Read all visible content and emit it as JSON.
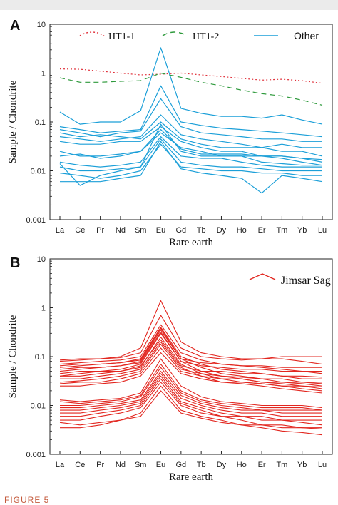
{
  "figure_caption": "FIGURE 5",
  "chart_data": [
    {
      "panel_label": "A",
      "type": "line",
      "xlabel": "Rare earth",
      "ylabel": "Sample / Chondrite",
      "categories": [
        "La",
        "Ce",
        "Pr",
        "Nd",
        "Sm",
        "Eu",
        "Gd",
        "Tb",
        "Dy",
        "Ho",
        "Er",
        "Tm",
        "Yb",
        "Lu"
      ],
      "y_scale": "log",
      "ylim": [
        0.001,
        10
      ],
      "y_ticks": [
        "0.001",
        "0.01",
        "0.1",
        "1",
        "10"
      ],
      "grid": false,
      "legend_position": "top",
      "legend": [
        {
          "name": "HT1-1",
          "color": "#e0303a",
          "dash": "dotted"
        },
        {
          "name": "HT1-2",
          "color": "#2e9a3c",
          "dash": "dashed"
        },
        {
          "name": "Other",
          "color": "#1b9fd8",
          "dash": "solid"
        }
      ],
      "series": [
        {
          "name": "HT1-1",
          "color": "#e0303a",
          "dash": "dotted",
          "values": [
            1.22,
            1.2,
            1.1,
            1.0,
            0.92,
            0.95,
            1.0,
            0.92,
            0.85,
            0.78,
            0.72,
            0.75,
            0.7,
            0.62
          ]
        },
        {
          "name": "HT1-2",
          "color": "#2e9a3c",
          "dash": "dashed",
          "values": [
            0.8,
            0.65,
            0.65,
            0.68,
            0.7,
            1.0,
            0.82,
            0.65,
            0.55,
            0.45,
            0.38,
            0.34,
            0.28,
            0.22
          ]
        },
        {
          "name": "Other",
          "color": "#1b9fd8",
          "dash": "solid",
          "values": [
            0.16,
            0.09,
            0.1,
            0.1,
            0.17,
            3.3,
            0.19,
            0.15,
            0.13,
            0.13,
            0.12,
            0.14,
            0.11,
            0.09
          ]
        },
        {
          "name": "Other",
          "color": "#1b9fd8",
          "dash": "solid",
          "values": [
            0.08,
            0.07,
            0.06,
            0.065,
            0.07,
            0.55,
            0.1,
            0.085,
            0.075,
            0.07,
            0.065,
            0.06,
            0.055,
            0.05
          ]
        },
        {
          "name": "Other",
          "color": "#1b9fd8",
          "dash": "solid",
          "values": [
            0.07,
            0.06,
            0.05,
            0.06,
            0.065,
            0.3,
            0.08,
            0.06,
            0.055,
            0.05,
            0.045,
            0.045,
            0.04,
            0.04
          ]
        },
        {
          "name": "Other",
          "color": "#1b9fd8",
          "dash": "solid",
          "values": [
            0.05,
            0.045,
            0.04,
            0.045,
            0.05,
            0.14,
            0.055,
            0.045,
            0.04,
            0.035,
            0.03,
            0.035,
            0.03,
            0.03
          ]
        },
        {
          "name": "Other",
          "color": "#1b9fd8",
          "dash": "solid",
          "values": [
            0.06,
            0.05,
            0.055,
            0.05,
            0.045,
            0.1,
            0.045,
            0.035,
            0.03,
            0.03,
            0.03,
            0.025,
            0.025,
            0.02
          ]
        },
        {
          "name": "Other",
          "color": "#1b9fd8",
          "dash": "solid",
          "values": [
            0.04,
            0.035,
            0.035,
            0.04,
            0.04,
            0.08,
            0.04,
            0.03,
            0.025,
            0.025,
            0.02,
            0.02,
            0.018,
            0.015
          ]
        },
        {
          "name": "Other",
          "color": "#1b9fd8",
          "dash": "solid",
          "values": [
            0.02,
            0.022,
            0.018,
            0.02,
            0.025,
            0.06,
            0.03,
            0.025,
            0.02,
            0.02,
            0.02,
            0.018,
            0.015,
            0.013
          ]
        },
        {
          "name": "Other",
          "color": "#1b9fd8",
          "dash": "solid",
          "values": [
            0.015,
            0.013,
            0.012,
            0.013,
            0.015,
            0.05,
            0.02,
            0.018,
            0.018,
            0.015,
            0.013,
            0.012,
            0.012,
            0.012
          ]
        },
        {
          "name": "Other",
          "color": "#1b9fd8",
          "dash": "solid",
          "values": [
            0.012,
            0.01,
            0.01,
            0.011,
            0.012,
            0.045,
            0.015,
            0.013,
            0.012,
            0.012,
            0.011,
            0.01,
            0.01,
            0.01
          ]
        },
        {
          "name": "Other",
          "color": "#1b9fd8",
          "dash": "solid",
          "values": [
            0.009,
            0.008,
            0.007,
            0.008,
            0.01,
            0.035,
            0.012,
            0.011,
            0.01,
            0.01,
            0.009,
            0.009,
            0.008,
            0.008
          ]
        },
        {
          "name": "Other",
          "color": "#1b9fd8",
          "dash": "solid",
          "values": [
            0.006,
            0.006,
            0.006,
            0.007,
            0.008,
            0.04,
            0.011,
            0.009,
            0.008,
            0.007,
            0.0035,
            0.008,
            0.007,
            0.006
          ]
        },
        {
          "name": "Other",
          "color": "#1b9fd8",
          "dash": "solid",
          "values": [
            0.014,
            0.005,
            0.008,
            0.01,
            0.012,
            0.09,
            0.025,
            0.02,
            0.02,
            0.02,
            0.015,
            0.014,
            0.013,
            0.013
          ]
        },
        {
          "name": "Other",
          "color": "#1b9fd8",
          "dash": "solid",
          "values": [
            0.025,
            0.02,
            0.02,
            0.022,
            0.025,
            0.07,
            0.028,
            0.022,
            0.022,
            0.022,
            0.02,
            0.02,
            0.018,
            0.017
          ]
        }
      ]
    },
    {
      "panel_label": "B",
      "type": "line",
      "xlabel": "Rare earth",
      "ylabel": "Sample / Chondrite",
      "categories": [
        "La",
        "Ce",
        "Pr",
        "Nd",
        "Sm",
        "Eu",
        "Gd",
        "Tb",
        "Dy",
        "Ho",
        "Er",
        "Tm",
        "Yb",
        "Lu"
      ],
      "y_scale": "log",
      "ylim": [
        0.001,
        10
      ],
      "y_ticks": [
        "0.001",
        "0.01",
        "0.1",
        "1",
        "10"
      ],
      "grid": false,
      "legend_position": "top-right",
      "legend": [
        {
          "name": "Jimsar Sag",
          "color": "#e2261f",
          "dash": "solid"
        }
      ],
      "series": [
        {
          "name": "Jimsar Sag",
          "color": "#e2261f",
          "dash": "solid",
          "values": [
            0.08,
            0.085,
            0.09,
            0.1,
            0.15,
            1.4,
            0.2,
            0.12,
            0.1,
            0.09,
            0.09,
            0.09,
            0.08,
            0.07
          ]
        },
        {
          "name": "Jimsar Sag",
          "color": "#e2261f",
          "dash": "solid",
          "values": [
            0.085,
            0.09,
            0.09,
            0.095,
            0.12,
            0.7,
            0.15,
            0.1,
            0.09,
            0.085,
            0.09,
            0.1,
            0.1,
            0.1
          ]
        },
        {
          "name": "Jimsar Sag",
          "color": "#e2261f",
          "dash": "solid",
          "values": [
            0.07,
            0.075,
            0.08,
            0.085,
            0.1,
            0.45,
            0.12,
            0.085,
            0.07,
            0.065,
            0.06,
            0.055,
            0.05,
            0.045
          ]
        },
        {
          "name": "Jimsar Sag",
          "color": "#e2261f",
          "dash": "solid",
          "values": [
            0.06,
            0.065,
            0.07,
            0.075,
            0.09,
            0.4,
            0.1,
            0.07,
            0.055,
            0.05,
            0.045,
            0.04,
            0.035,
            0.035
          ]
        },
        {
          "name": "Jimsar Sag",
          "color": "#e2261f",
          "dash": "solid",
          "values": [
            0.05,
            0.055,
            0.06,
            0.065,
            0.08,
            0.35,
            0.09,
            0.06,
            0.045,
            0.04,
            0.035,
            0.03,
            0.028,
            0.025
          ]
        },
        {
          "name": "Jimsar Sag",
          "color": "#e2261f",
          "dash": "solid",
          "values": [
            0.045,
            0.05,
            0.05,
            0.055,
            0.07,
            0.3,
            0.08,
            0.05,
            0.04,
            0.035,
            0.03,
            0.028,
            0.025,
            0.022
          ]
        },
        {
          "name": "Jimsar Sag",
          "color": "#e2261f",
          "dash": "solid",
          "values": [
            0.04,
            0.04,
            0.045,
            0.05,
            0.06,
            0.25,
            0.07,
            0.045,
            0.035,
            0.03,
            0.028,
            0.025,
            0.022,
            0.02
          ]
        },
        {
          "name": "Jimsar Sag",
          "color": "#e2261f",
          "dash": "solid",
          "values": [
            0.035,
            0.035,
            0.04,
            0.045,
            0.055,
            0.2,
            0.06,
            0.04,
            0.03,
            0.028,
            0.025,
            0.022,
            0.02,
            0.018
          ]
        },
        {
          "name": "Jimsar Sag",
          "color": "#e2261f",
          "dash": "solid",
          "values": [
            0.03,
            0.032,
            0.035,
            0.04,
            0.05,
            0.18,
            0.055,
            0.045,
            0.04,
            0.038,
            0.035,
            0.035,
            0.03,
            0.03
          ]
        },
        {
          "name": "Jimsar Sag",
          "color": "#e2261f",
          "dash": "solid",
          "values": [
            0.028,
            0.03,
            0.03,
            0.035,
            0.045,
            0.15,
            0.05,
            0.04,
            0.035,
            0.035,
            0.03,
            0.03,
            0.03,
            0.028
          ]
        },
        {
          "name": "Jimsar Sag",
          "color": "#e2261f",
          "dash": "solid",
          "values": [
            0.025,
            0.025,
            0.028,
            0.03,
            0.04,
            0.12,
            0.045,
            0.035,
            0.03,
            0.03,
            0.028,
            0.025,
            0.025,
            0.024
          ]
        },
        {
          "name": "Jimsar Sag",
          "color": "#e2261f",
          "dash": "solid",
          "values": [
            0.04,
            0.045,
            0.05,
            0.05,
            0.065,
            0.22,
            0.065,
            0.05,
            0.05,
            0.045,
            0.045,
            0.04,
            0.04,
            0.038
          ]
        },
        {
          "name": "Jimsar Sag",
          "color": "#e2261f",
          "dash": "solid",
          "values": [
            0.055,
            0.06,
            0.06,
            0.065,
            0.075,
            0.32,
            0.08,
            0.065,
            0.06,
            0.055,
            0.055,
            0.05,
            0.05,
            0.05
          ]
        },
        {
          "name": "Jimsar Sag",
          "color": "#e2261f",
          "dash": "solid",
          "values": [
            0.065,
            0.07,
            0.07,
            0.075,
            0.085,
            0.38,
            0.09,
            0.075,
            0.07,
            0.065,
            0.065,
            0.06,
            0.06,
            0.06
          ]
        },
        {
          "name": "Jimsar Sag",
          "color": "#e2261f",
          "dash": "solid",
          "values": [
            0.013,
            0.012,
            0.013,
            0.014,
            0.018,
            0.09,
            0.025,
            0.015,
            0.012,
            0.011,
            0.01,
            0.01,
            0.01,
            0.009
          ]
        },
        {
          "name": "Jimsar Sag",
          "color": "#e2261f",
          "dash": "solid",
          "values": [
            0.012,
            0.011,
            0.012,
            0.013,
            0.016,
            0.07,
            0.02,
            0.013,
            0.011,
            0.01,
            0.009,
            0.009,
            0.009,
            0.008
          ]
        },
        {
          "name": "Jimsar Sag",
          "color": "#e2261f",
          "dash": "solid",
          "values": [
            0.01,
            0.01,
            0.011,
            0.012,
            0.015,
            0.06,
            0.018,
            0.012,
            0.01,
            0.009,
            0.008,
            0.008,
            0.008,
            0.008
          ]
        },
        {
          "name": "Jimsar Sag",
          "color": "#e2261f",
          "dash": "solid",
          "values": [
            0.009,
            0.009,
            0.01,
            0.011,
            0.013,
            0.05,
            0.016,
            0.011,
            0.009,
            0.008,
            0.008,
            0.007,
            0.007,
            0.007
          ]
        },
        {
          "name": "Jimsar Sag",
          "color": "#e2261f",
          "dash": "solid",
          "values": [
            0.008,
            0.008,
            0.009,
            0.01,
            0.012,
            0.045,
            0.014,
            0.01,
            0.008,
            0.007,
            0.007,
            0.006,
            0.006,
            0.006
          ]
        },
        {
          "name": "Jimsar Sag",
          "color": "#e2261f",
          "dash": "solid",
          "values": [
            0.007,
            0.007,
            0.008,
            0.009,
            0.011,
            0.04,
            0.012,
            0.009,
            0.007,
            0.006,
            0.006,
            0.005,
            0.005,
            0.005
          ]
        },
        {
          "name": "Jimsar Sag",
          "color": "#e2261f",
          "dash": "solid",
          "values": [
            0.006,
            0.006,
            0.007,
            0.008,
            0.01,
            0.035,
            0.011,
            0.008,
            0.006,
            0.006,
            0.005,
            0.005,
            0.0045,
            0.004
          ]
        },
        {
          "name": "Jimsar Sag",
          "color": "#e2261f",
          "dash": "solid",
          "values": [
            0.005,
            0.005,
            0.006,
            0.007,
            0.009,
            0.03,
            0.01,
            0.007,
            0.006,
            0.005,
            0.004,
            0.004,
            0.0035,
            0.0035
          ]
        },
        {
          "name": "Jimsar Sag",
          "color": "#e2261f",
          "dash": "solid",
          "values": [
            0.0035,
            0.0035,
            0.004,
            0.005,
            0.007,
            0.025,
            0.008,
            0.006,
            0.005,
            0.004,
            0.0035,
            0.003,
            0.0028,
            0.0025
          ]
        },
        {
          "name": "Jimsar Sag",
          "color": "#e2261f",
          "dash": "solid",
          "values": [
            0.0045,
            0.004,
            0.0045,
            0.005,
            0.006,
            0.02,
            0.007,
            0.0055,
            0.0045,
            0.004,
            0.004,
            0.0035,
            0.0035,
            0.0033
          ]
        }
      ]
    }
  ]
}
